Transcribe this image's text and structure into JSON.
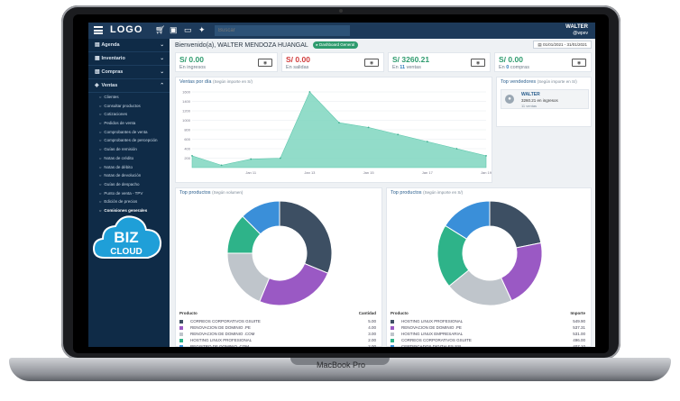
{
  "device": {
    "brand_label": "MacBook Pro"
  },
  "topbar": {
    "logo": "LOGO",
    "search_placeholder": "Buscar",
    "user_name": "WALTER",
    "user_role": "@wpev"
  },
  "sidebar": {
    "items": [
      {
        "label": "Agenda",
        "icon": "calendar-icon"
      },
      {
        "label": "Inventario",
        "icon": "box-icon"
      },
      {
        "label": "Compras",
        "icon": "cart-icon"
      },
      {
        "label": "Ventas",
        "icon": "tag-icon"
      }
    ],
    "sub_items": [
      "Clientes",
      "Consultar productos",
      "Cotizaciones",
      "Pedidos de venta",
      "Comprobantes de venta",
      "Comprobantes de percepción",
      "Guías de remisión",
      "Notas de crédito",
      "Notas de débito",
      "Notas de devolución",
      "Guías de despacho",
      "Punto de venta - TPV",
      "Edición de precios",
      "Comisiones generales"
    ]
  },
  "header": {
    "welcome": "Bienvenido(a), WALTER MENDOZA HUANGAL",
    "dashboard_badge": "Dashboard General",
    "date_range": "01/01/2021 - 31/01/2021"
  },
  "stats": [
    {
      "amount": "S/ 0.00",
      "label_pre": "En ingresos",
      "count": "",
      "label_post": "",
      "color": "#2e9b6e"
    },
    {
      "amount": "S/ 0.00",
      "label_pre": "En salidas",
      "count": "",
      "label_post": "",
      "color": "#d13c3c"
    },
    {
      "amount": "S/ 3260.21",
      "label_pre": "En",
      "count": "11",
      "label_post": "ventas",
      "color": "#2e9b6e"
    },
    {
      "amount": "S/ 0.00",
      "label_pre": "En",
      "count": "0",
      "label_post": "compras",
      "color": "#2e9b6e"
    }
  ],
  "sales_chart": {
    "title": "Ventas por día",
    "subtitle": "(Según importe en S/)"
  },
  "top_sellers": {
    "title": "Top vendedores",
    "subtitle": "(Según importe en S/)",
    "name": "WALTER",
    "value": "3260.21 en ingresos",
    "count": "11 ventas"
  },
  "top_volume": {
    "title": "Top productos",
    "subtitle": "(Según volumen)",
    "col_product": "Producto",
    "col_value": "Cantidad",
    "rows": [
      {
        "name": "CORREOS CORPORATIVOS GSUITE",
        "value": "5.00",
        "color": "#3d4f63"
      },
      {
        "name": "RENOVACION DE DOMINIO .PE",
        "value": "4.00",
        "color": "#9a59c4"
      },
      {
        "name": "RENOVACION DE DOMINIO .COM",
        "value": "3.00",
        "color": "#bfc5cb"
      },
      {
        "name": "HOSTING LINUX PROFESIONAL",
        "value": "2.00",
        "color": "#2eb389"
      },
      {
        "name": "REGISTRO DE DOMINIO .COM",
        "value": "2.00",
        "color": "#3a8fd9"
      }
    ]
  },
  "top_amount": {
    "title": "Top productos",
    "subtitle": "(Según importe en S/)",
    "col_product": "Producto",
    "col_value": "Importe",
    "rows": [
      {
        "name": "HOSTING LINUX PROFESIONAL",
        "value": "549.90",
        "color": "#3d4f63"
      },
      {
        "name": "RENOVACION DE DOMINIO .PE",
        "value": "537.31",
        "color": "#9a59c4"
      },
      {
        "name": "HOSTING LINUX EMPRESARIAL",
        "value": "531.00",
        "color": "#bfc5cb"
      },
      {
        "name": "CORREOS CORPORATIVOS GSUITE",
        "value": "496.00",
        "color": "#2eb389"
      },
      {
        "name": "CERTIFICADOS DIGITALES SSL",
        "value": "407.10",
        "color": "#3a8fd9"
      }
    ]
  },
  "chart_data": [
    {
      "type": "area",
      "x": [
        "Jan 09",
        "Jan 10",
        "Jan 11",
        "Jan 12",
        "Jan 13",
        "Jan 14",
        "Jan 15",
        "Jan 16",
        "Jan 17",
        "Jan 18",
        "Jan 19"
      ],
      "x_tick_labels": [
        "Jan 11",
        "Jan 13",
        "Jan 15",
        "Jan 17",
        "Jan 19"
      ],
      "values": [
        250,
        50,
        180,
        200,
        1650,
        950,
        850,
        700,
        550,
        400,
        250
      ],
      "ylim": [
        0,
        1600
      ],
      "y_ticks": [
        200,
        400,
        600,
        800,
        1000,
        1200,
        1400,
        1600
      ],
      "color": "#7fd6bf",
      "grid": true
    },
    {
      "type": "pie",
      "labels": [
        "CORREOS CORPORATIVOS GSUITE",
        "RENOVACION DE DOMINIO .PE",
        "RENOVACION DE DOMINIO .COM",
        "HOSTING LINUX PROFESIONAL",
        "REGISTRO DE DOMINIO .COM"
      ],
      "values": [
        5,
        4,
        3,
        2,
        2
      ]
    },
    {
      "type": "pie",
      "labels": [
        "HOSTING LINUX PROFESIONAL",
        "RENOVACION DE DOMINIO .PE",
        "HOSTING LINUX EMPRESARIAL",
        "CORREOS CORPORATIVOS GSUITE",
        "CERTIFICADOS DIGITALES SSL"
      ],
      "values": [
        549.9,
        537.31,
        531.0,
        496.0,
        407.1
      ]
    }
  ],
  "overlay_logo": {
    "line1": "BIZ",
    "line2": "CLOUD"
  }
}
